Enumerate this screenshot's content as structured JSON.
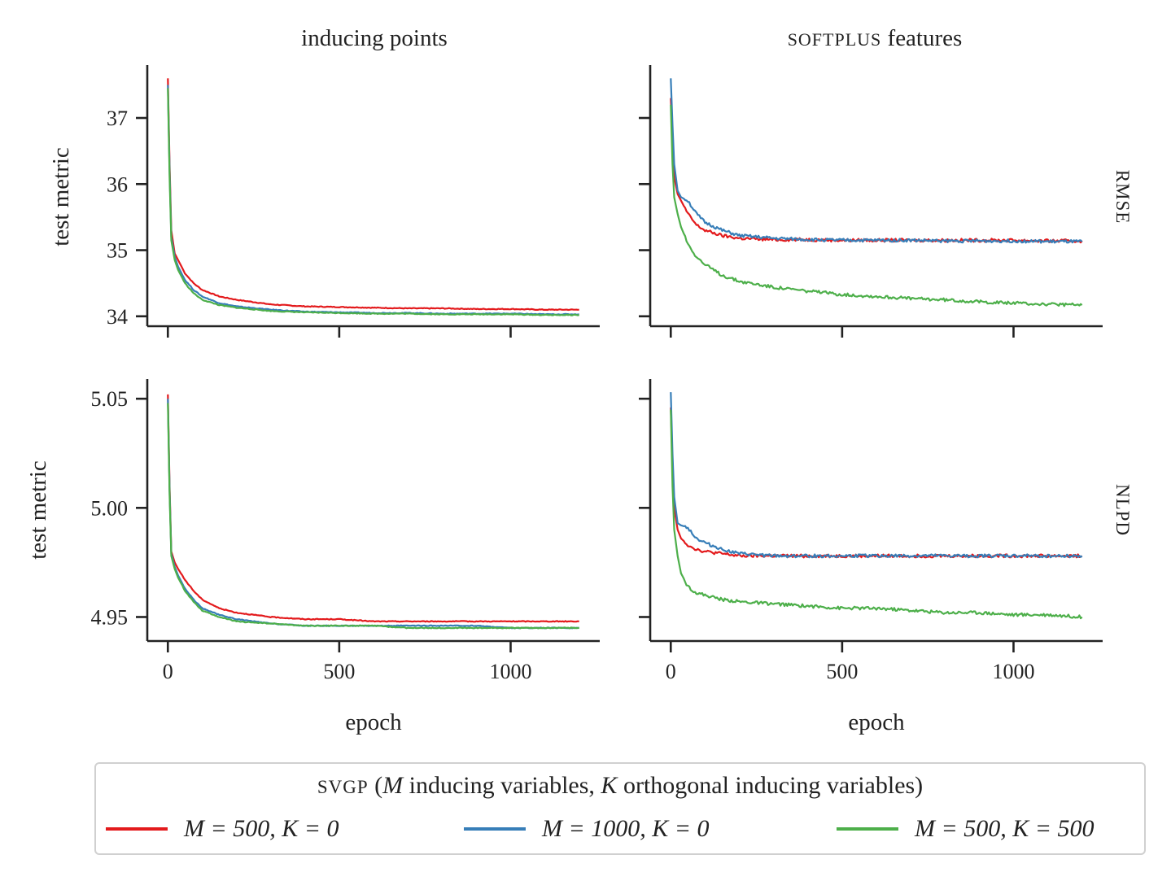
{
  "figure": {
    "col_titles": [
      "inducing points",
      "SOFTPLUS features"
    ],
    "row_titles": [
      "RMSE",
      "NLPD"
    ],
    "ylabel": "test metric",
    "xlabel": "epoch"
  },
  "legend": {
    "title": "SVGP (M inducing variables, K orthogonal inducing variables)",
    "entries": [
      {
        "label": "M = 500, K = 0",
        "color": "#e31a1c"
      },
      {
        "label": "M = 1000, K = 0",
        "color": "#377eb8"
      },
      {
        "label": "M = 500, K = 500",
        "color": "#4daf4a"
      }
    ]
  },
  "chart_data": [
    {
      "type": "line",
      "title": "inducing points",
      "row": "RMSE",
      "xlabel": "",
      "ylabel": "test metric",
      "xlim": [
        -60,
        1260
      ],
      "ylim": [
        33.85,
        37.8
      ],
      "xticks": [
        0,
        500,
        1000
      ],
      "yticks": [
        34,
        35,
        36,
        37
      ],
      "series": [
        {
          "name": "M = 500, K = 0",
          "color": "#e31a1c",
          "x": [
            0,
            5,
            10,
            20,
            30,
            50,
            75,
            100,
            150,
            200,
            300,
            400,
            500,
            600,
            700,
            800,
            900,
            1000,
            1100,
            1200
          ],
          "y": [
            37.6,
            36.3,
            35.3,
            34.95,
            34.85,
            34.65,
            34.5,
            34.4,
            34.3,
            34.25,
            34.18,
            34.15,
            34.14,
            34.13,
            34.12,
            34.12,
            34.11,
            34.11,
            34.1,
            34.1
          ]
        },
        {
          "name": "M = 1000, K = 0",
          "color": "#377eb8",
          "x": [
            0,
            5,
            10,
            20,
            30,
            50,
            75,
            100,
            150,
            200,
            300,
            400,
            500,
            600,
            700,
            800,
            900,
            1000,
            1100,
            1200
          ],
          "y": [
            37.5,
            36.2,
            35.2,
            34.9,
            34.75,
            34.55,
            34.4,
            34.3,
            34.2,
            34.15,
            34.1,
            34.07,
            34.06,
            34.05,
            34.05,
            34.04,
            34.04,
            34.04,
            34.03,
            34.03
          ]
        },
        {
          "name": "M = 500, K = 500",
          "color": "#4daf4a",
          "x": [
            0,
            5,
            10,
            20,
            30,
            50,
            75,
            100,
            150,
            200,
            300,
            400,
            500,
            600,
            700,
            800,
            900,
            1000,
            1100,
            1200
          ],
          "y": [
            37.45,
            36.1,
            35.15,
            34.85,
            34.7,
            34.5,
            34.35,
            34.25,
            34.17,
            34.13,
            34.08,
            34.06,
            34.05,
            34.04,
            34.04,
            34.03,
            34.03,
            34.03,
            34.02,
            34.02
          ]
        }
      ]
    },
    {
      "type": "line",
      "title": "SOFTPLUS features",
      "row": "RMSE",
      "xlabel": "",
      "ylabel": "",
      "xlim": [
        -60,
        1260
      ],
      "ylim": [
        33.85,
        37.8
      ],
      "xticks": [
        0,
        500,
        1000
      ],
      "yticks": [
        34,
        35,
        36,
        37
      ],
      "series": [
        {
          "name": "M = 500, K = 0",
          "color": "#e31a1c",
          "x": [
            0,
            5,
            10,
            20,
            30,
            50,
            75,
            100,
            150,
            200,
            300,
            400,
            500,
            600,
            700,
            800,
            900,
            1000,
            1100,
            1200
          ],
          "y": [
            37.3,
            36.6,
            36.1,
            35.85,
            35.75,
            35.55,
            35.38,
            35.3,
            35.22,
            35.18,
            35.16,
            35.16,
            35.15,
            35.15,
            35.15,
            35.15,
            35.15,
            35.15,
            35.14,
            35.14
          ]
        },
        {
          "name": "M = 1000, K = 0",
          "color": "#377eb8",
          "x": [
            0,
            5,
            10,
            20,
            30,
            50,
            75,
            100,
            150,
            200,
            300,
            400,
            500,
            600,
            700,
            800,
            900,
            1000,
            1100,
            1200
          ],
          "y": [
            37.6,
            36.9,
            36.3,
            35.9,
            35.8,
            35.75,
            35.55,
            35.42,
            35.3,
            35.22,
            35.18,
            35.16,
            35.15,
            35.15,
            35.15,
            35.14,
            35.14,
            35.14,
            35.13,
            35.13
          ]
        },
        {
          "name": "M = 500, K = 500",
          "color": "#4daf4a",
          "x": [
            0,
            5,
            10,
            20,
            30,
            50,
            75,
            100,
            150,
            200,
            300,
            400,
            500,
            600,
            700,
            800,
            900,
            1000,
            1100,
            1200
          ],
          "y": [
            37.2,
            36.3,
            35.8,
            35.55,
            35.35,
            35.1,
            34.9,
            34.78,
            34.62,
            34.53,
            34.44,
            34.38,
            34.33,
            34.3,
            34.27,
            34.25,
            34.22,
            34.2,
            34.18,
            34.17
          ]
        }
      ]
    },
    {
      "type": "line",
      "title": "inducing points",
      "row": "NLPD",
      "xlabel": "epoch",
      "ylabel": "test metric",
      "xlim": [
        -60,
        1260
      ],
      "ylim": [
        4.939,
        5.059
      ],
      "xticks": [
        0,
        500,
        1000
      ],
      "yticks": [
        4.95,
        5.0,
        5.05
      ],
      "series": [
        {
          "name": "M = 500, K = 0",
          "color": "#e31a1c",
          "x": [
            0,
            5,
            10,
            20,
            30,
            50,
            75,
            100,
            150,
            200,
            300,
            400,
            500,
            600,
            700,
            800,
            900,
            1000,
            1100,
            1200
          ],
          "y": [
            5.052,
            5.01,
            4.98,
            4.975,
            4.972,
            4.967,
            4.962,
            4.958,
            4.954,
            4.952,
            4.95,
            4.949,
            4.949,
            4.948,
            4.948,
            4.948,
            4.948,
            4.948,
            4.948,
            4.948
          ]
        },
        {
          "name": "M = 1000, K = 0",
          "color": "#377eb8",
          "x": [
            0,
            5,
            10,
            20,
            30,
            50,
            75,
            100,
            150,
            200,
            300,
            400,
            500,
            600,
            700,
            800,
            900,
            1000,
            1100,
            1200
          ],
          "y": [
            5.05,
            5.008,
            4.979,
            4.973,
            4.969,
            4.963,
            4.958,
            4.954,
            4.951,
            4.949,
            4.947,
            4.946,
            4.946,
            4.946,
            4.946,
            4.946,
            4.946,
            4.945,
            4.945,
            4.945
          ]
        },
        {
          "name": "M = 500, K = 500",
          "color": "#4daf4a",
          "x": [
            0,
            5,
            10,
            20,
            30,
            50,
            75,
            100,
            150,
            200,
            300,
            400,
            500,
            600,
            700,
            800,
            900,
            1000,
            1100,
            1200
          ],
          "y": [
            5.048,
            5.006,
            4.978,
            4.972,
            4.968,
            4.962,
            4.957,
            4.953,
            4.95,
            4.948,
            4.947,
            4.946,
            4.946,
            4.946,
            4.945,
            4.945,
            4.945,
            4.945,
            4.945,
            4.945
          ]
        }
      ]
    },
    {
      "type": "line",
      "title": "SOFTPLUS features",
      "row": "NLPD",
      "xlabel": "epoch",
      "ylabel": "",
      "xlim": [
        -60,
        1260
      ],
      "ylim": [
        4.939,
        5.059
      ],
      "xticks": [
        0,
        500,
        1000
      ],
      "yticks": [
        4.95,
        5.0,
        5.05
      ],
      "series": [
        {
          "name": "M = 500, K = 0",
          "color": "#e31a1c",
          "x": [
            0,
            5,
            10,
            20,
            30,
            50,
            75,
            100,
            150,
            200,
            300,
            400,
            500,
            600,
            700,
            800,
            900,
            1000,
            1100,
            1200
          ],
          "y": [
            5.046,
            5.02,
            5.0,
            4.99,
            4.986,
            4.983,
            4.981,
            4.98,
            4.979,
            4.978,
            4.978,
            4.978,
            4.978,
            4.978,
            4.978,
            4.978,
            4.978,
            4.978,
            4.978,
            4.978
          ]
        },
        {
          "name": "M = 1000, K = 0",
          "color": "#377eb8",
          "x": [
            0,
            5,
            10,
            20,
            30,
            50,
            75,
            100,
            150,
            200,
            300,
            400,
            500,
            600,
            700,
            800,
            900,
            1000,
            1100,
            1200
          ],
          "y": [
            5.053,
            5.025,
            5.005,
            4.993,
            4.992,
            4.991,
            4.986,
            4.984,
            4.981,
            4.979,
            4.978,
            4.978,
            4.978,
            4.978,
            4.978,
            4.978,
            4.978,
            4.978,
            4.978,
            4.978
          ]
        },
        {
          "name": "M = 500, K = 500",
          "color": "#4daf4a",
          "x": [
            0,
            5,
            10,
            20,
            30,
            50,
            75,
            100,
            150,
            200,
            300,
            400,
            500,
            600,
            700,
            800,
            900,
            1000,
            1100,
            1200
          ],
          "y": [
            5.045,
            5.01,
            4.99,
            4.978,
            4.97,
            4.964,
            4.961,
            4.96,
            4.958,
            4.957,
            4.956,
            4.955,
            4.954,
            4.954,
            4.953,
            4.952,
            4.952,
            4.951,
            4.951,
            4.95
          ]
        }
      ]
    }
  ]
}
